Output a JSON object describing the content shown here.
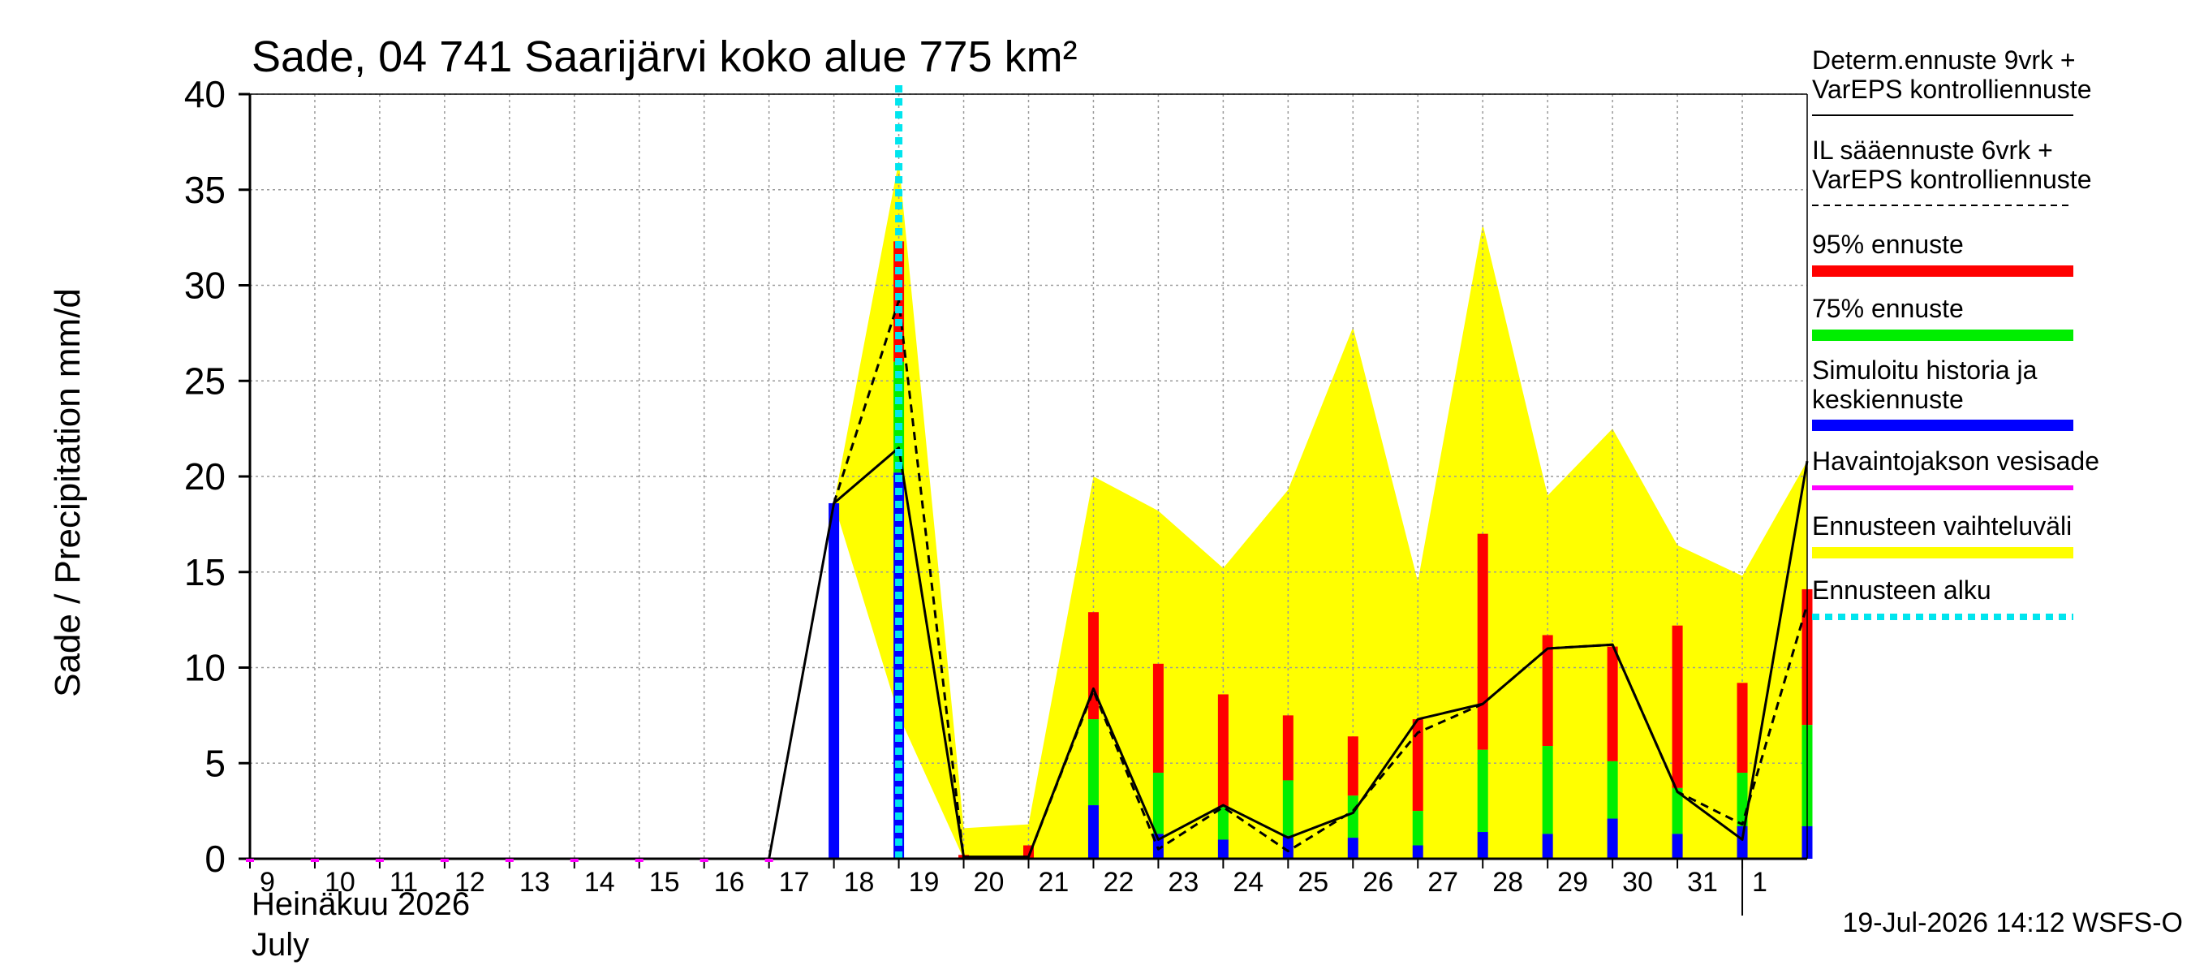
{
  "chart_data": {
    "type": "bar",
    "title": "Sade, 04 741 Saarijärvi koko alue 775 km²",
    "ylabel": "Sade / Precipitation   mm/d",
    "xlabel_line1": "Heinäkuu  2026",
    "xlabel_line2": "July",
    "footer": "19-Jul-2026 14:12 WSFS-O",
    "ylim": [
      0,
      40
    ],
    "yticks": [
      "0",
      "5",
      "10",
      "15",
      "20",
      "25",
      "30",
      "35",
      "40"
    ],
    "x_tick_labels": [
      "9",
      "10",
      "11",
      "12",
      "13",
      "14",
      "15",
      "16",
      "17",
      "18",
      "19",
      "20",
      "21",
      "22",
      "23",
      "24",
      "25",
      "26",
      "27",
      "28",
      "29",
      "30",
      "31",
      "1"
    ],
    "grid": true,
    "forecast_start_day": 19,
    "bars": [
      {
        "day": 18,
        "median": 18.6,
        "p75": 18.6,
        "p95": 18.6
      },
      {
        "day": 19,
        "median": 20.2,
        "p75": 26.0,
        "p95": 32.3
      },
      {
        "day": 20,
        "median": 0.0,
        "p75": 0.0,
        "p95": 0.2
      },
      {
        "day": 21,
        "median": 0.0,
        "p75": 0.0,
        "p95": 0.7
      },
      {
        "day": 22,
        "median": 2.8,
        "p75": 7.3,
        "p95": 12.9
      },
      {
        "day": 23,
        "median": 1.3,
        "p75": 4.5,
        "p95": 10.2
      },
      {
        "day": 24,
        "median": 1.0,
        "p75": 2.7,
        "p95": 8.6
      },
      {
        "day": 25,
        "median": 1.2,
        "p75": 4.1,
        "p95": 7.5
      },
      {
        "day": 26,
        "median": 1.1,
        "p75": 3.3,
        "p95": 6.4
      },
      {
        "day": 27,
        "median": 0.7,
        "p75": 2.5,
        "p95": 7.3
      },
      {
        "day": 28,
        "median": 1.4,
        "p75": 5.7,
        "p95": 17.0
      },
      {
        "day": 29,
        "median": 1.3,
        "p75": 5.9,
        "p95": 11.7
      },
      {
        "day": 30,
        "median": 2.1,
        "p75": 5.1,
        "p95": 11.1
      },
      {
        "day": 31,
        "median": 1.3,
        "p75": 3.7,
        "p95": 12.2
      },
      {
        "day": 32,
        "median": 1.7,
        "p75": 4.5,
        "p95": 9.2
      },
      {
        "day": 33,
        "median": 1.7,
        "p75": 7.0,
        "p95": 14.1
      }
    ],
    "range_band": {
      "days": [
        18,
        19,
        20,
        21,
        22,
        23,
        24,
        25,
        26,
        27,
        28,
        29,
        30,
        31,
        32,
        33
      ],
      "upper": [
        18.6,
        36.5,
        1.6,
        1.8,
        20.0,
        18.2,
        15.2,
        19.3,
        27.8,
        14.5,
        33.2,
        19.0,
        22.5,
        16.4,
        14.8,
        20.8
      ],
      "lower": [
        18.6,
        7.5,
        0.0,
        0.0,
        0.0,
        0.0,
        0.0,
        0.0,
        0.0,
        0.0,
        0.0,
        0.0,
        0.0,
        0.0,
        0.0,
        0.0
      ]
    },
    "series": [
      {
        "name": "Determ.ennuste 9vrk + VarEPS kontrolliennuste",
        "days": [
          9,
          10,
          11,
          12,
          13,
          14,
          15,
          16,
          17,
          18,
          19,
          20,
          21,
          22,
          23,
          24,
          25,
          26,
          27,
          28,
          29,
          30,
          31,
          32,
          33
        ],
        "values": [
          0,
          0,
          0,
          0,
          0,
          0,
          0,
          0,
          0,
          18.6,
          21.5,
          0.1,
          0.1,
          8.9,
          1.0,
          2.8,
          1.1,
          2.4,
          7.3,
          8.1,
          11.0,
          11.2,
          3.5,
          1.0,
          20.8
        ]
      },
      {
        "name": "IL sääennuste 6vrk + VarEPS kontrolliennuste",
        "days": [
          18,
          19,
          20,
          21,
          22,
          23,
          24,
          25,
          26,
          27,
          28,
          29,
          30,
          31,
          32,
          33
        ],
        "values": [
          18.6,
          29.2,
          0.0,
          0.1,
          8.8,
          0.5,
          2.7,
          0.4,
          2.5,
          6.6,
          8.1,
          11.0,
          11.2,
          3.5,
          1.8,
          13.3
        ]
      }
    ],
    "legend": [
      {
        "label1": "Determ.ennuste 9vrk +",
        "label2": "VarEPS kontrolliennuste",
        "style": "solid-thin",
        "color": "#000000"
      },
      {
        "label1": "IL sääennuste 6vrk  +",
        "label2": "VarEPS kontrolliennuste",
        "style": "dashed-thin",
        "color": "#000000"
      },
      {
        "label1": "95% ennuste",
        "label2": "",
        "style": "thick",
        "color": "#ff0000"
      },
      {
        "label1": "75% ennuste",
        "label2": "",
        "style": "thick",
        "color": "#00ee00"
      },
      {
        "label1": "Simuloitu historia ja",
        "label2": "keskiennuste",
        "style": "thick",
        "color": "#0000ff"
      },
      {
        "label1": "Havaintojakson vesisade",
        "label2": "",
        "style": "medium",
        "color": "#ff00ff"
      },
      {
        "label1": "Ennusteen vaihteluväli",
        "label2": "",
        "style": "thick",
        "color": "#ffff00"
      },
      {
        "label1": "Ennusteen alku",
        "label2": "",
        "style": "dotted-thick",
        "color": "#00e5ee"
      }
    ],
    "colors": {
      "p95": "#ff0000",
      "p75": "#00ee00",
      "median": "#0000ff",
      "band": "#ffff00",
      "forecast_start": "#00e5ee",
      "observed": "#ff00ff"
    }
  }
}
